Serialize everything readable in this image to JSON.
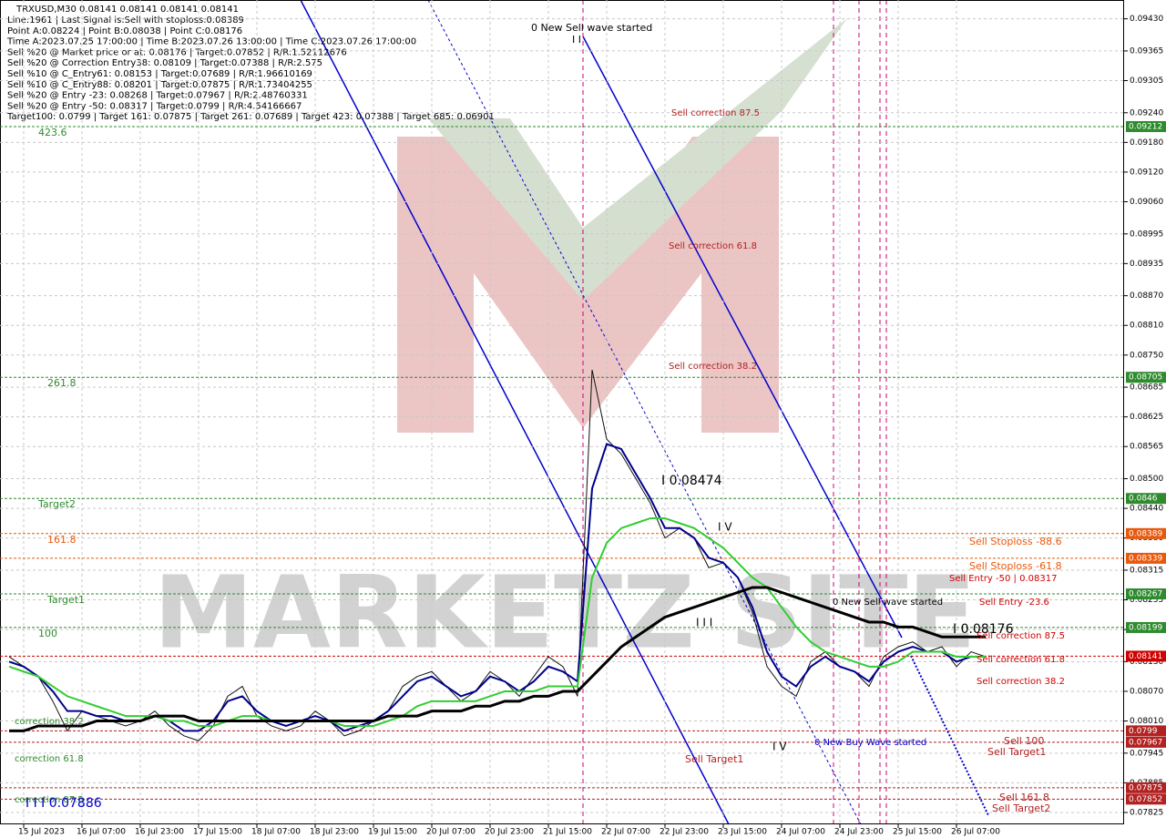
{
  "chart_data": {
    "type": "line",
    "symbol_line": "TRXUSD,M30  0.08141 0.08141 0.08141 0.08141",
    "info": [
      "Line:1961 | Last Signal is:Sell with stoploss:0.08389",
      "Point A:0.08224 | Point B:0.08038 | Point C:0.08176",
      "Time A:2023.07.25 17:00:00 | Time B:2023.07.26 13:00:00 | Time C:2023.07.26 17:00:00",
      "Sell %20 @ Market price or at: 0.08176 | Target:0.07852 | R/R:1.52112676",
      "Sell %20 @ Correction Entry38: 0.08109 | Target:0.07388 | R/R:2.575",
      "Sell %10 @ C_Entry61: 0.08153 | Target:0.07689 | R/R:1.96610169",
      "Sell %10 @ C_Entry88: 0.08201 | Target:0.07875 | R/R:1.73404255",
      "Sell %20 @ Entry -23: 0.08268 | Target:0.07967 | R/R:2.48760331",
      "Sell %20 @ Entry -50: 0.08317 | Target:0.0799 | R/R:4.54166667",
      "Target100: 0.0799 | Target 161: 0.07875 | Target 261: 0.07689 | Target 423: 0.07388 | Target 685: 0.06901"
    ],
    "watermark": "MARKETZ SITE",
    "categories": [
      null,
      "15 Jul 2023",
      null,
      null,
      null,
      "16 Jul 07:00",
      null,
      null,
      null,
      "16 Jul 23:00",
      null,
      null,
      null,
      "17 Jul 15:00",
      null,
      null,
      null,
      "18 Jul 07:00",
      null,
      null,
      null,
      "18 Jul 23:00",
      null,
      null,
      null,
      "19 Jul 15:00",
      null,
      null,
      null,
      "20 Jul 07:00",
      null,
      null,
      null,
      "20 Jul 23:00",
      null,
      null,
      null,
      "21 Jul 15:00",
      null,
      null,
      null,
      "22 Jul 07:00",
      null,
      null,
      null,
      "22 Jul 23:00",
      null,
      null,
      null,
      "23 Jul 15:00",
      null,
      null,
      null,
      "24 Jul 07:00",
      null,
      null,
      null,
      "24 Jul 23:00",
      null,
      null,
      null,
      "25 Jul 15:00",
      null,
      null,
      null,
      "26 Jul 07:00",
      null,
      null
    ],
    "series": [
      {
        "color": "#111111",
        "width": 1,
        "values": [
          0.0814,
          0.0812,
          0.081,
          0.0805,
          0.0799,
          0.0803,
          0.0802,
          0.0801,
          0.08,
          0.0801,
          0.0803,
          0.08,
          0.0798,
          0.0797,
          0.08,
          0.0806,
          0.0808,
          0.0802,
          0.08,
          0.0799,
          0.08,
          0.0803,
          0.0801,
          0.0798,
          0.0799,
          0.0801,
          0.0803,
          0.0808,
          0.081,
          0.0811,
          0.0808,
          0.0805,
          0.0807,
          0.0811,
          0.0809,
          0.0806,
          0.081,
          0.0814,
          0.0812,
          0.0806,
          0.0872,
          0.0858,
          0.0855,
          0.085,
          0.0845,
          0.0838,
          0.084,
          0.0838,
          0.0832,
          0.0833,
          0.083,
          0.0823,
          0.0812,
          0.0808,
          0.0806,
          0.0813,
          0.0815,
          0.0812,
          0.0811,
          0.0808,
          0.0814,
          0.0816,
          0.0817,
          0.0815,
          0.0816,
          0.0812,
          0.0815,
          0.0814
        ]
      },
      {
        "color": "#00008b",
        "width": 2,
        "values": [
          0.0813,
          0.0812,
          0.081,
          0.0807,
          0.0803,
          0.0803,
          0.0802,
          0.0802,
          0.0801,
          0.0801,
          0.0802,
          0.0801,
          0.0799,
          0.0799,
          0.0801,
          0.0805,
          0.0806,
          0.0803,
          0.0801,
          0.08,
          0.0801,
          0.0802,
          0.0801,
          0.0799,
          0.08,
          0.0801,
          0.0803,
          0.0806,
          0.0809,
          0.081,
          0.0808,
          0.0806,
          0.0807,
          0.081,
          0.0809,
          0.0807,
          0.0809,
          0.0812,
          0.0811,
          0.0809,
          0.0848,
          0.0857,
          0.0856,
          0.0851,
          0.0846,
          0.084,
          0.084,
          0.0838,
          0.0834,
          0.0833,
          0.083,
          0.0824,
          0.0815,
          0.081,
          0.0808,
          0.0812,
          0.0814,
          0.0812,
          0.0811,
          0.0809,
          0.0813,
          0.0815,
          0.0816,
          0.0815,
          0.0815,
          0.0813,
          0.0814,
          0.0814
        ]
      },
      {
        "color": "#32cd32",
        "width": 2,
        "values": [
          0.0812,
          0.0811,
          0.081,
          0.0808,
          0.0806,
          0.0805,
          0.0804,
          0.0803,
          0.0802,
          0.0802,
          0.0802,
          0.0801,
          0.0801,
          0.08,
          0.08,
          0.0801,
          0.0802,
          0.0802,
          0.0801,
          0.0801,
          0.0801,
          0.0801,
          0.0801,
          0.08,
          0.08,
          0.08,
          0.0801,
          0.0802,
          0.0804,
          0.0805,
          0.0805,
          0.0805,
          0.0805,
          0.0806,
          0.0807,
          0.0807,
          0.0807,
          0.0808,
          0.0808,
          0.0808,
          0.083,
          0.0837,
          0.084,
          0.0841,
          0.0842,
          0.0842,
          0.0841,
          0.084,
          0.0838,
          0.0836,
          0.0833,
          0.083,
          0.0828,
          0.0824,
          0.082,
          0.0817,
          0.0815,
          0.0814,
          0.0813,
          0.0812,
          0.0812,
          0.0813,
          0.0815,
          0.0815,
          0.0815,
          0.0814,
          0.0814,
          0.0814
        ]
      },
      {
        "color": "#000000",
        "width": 3,
        "values": [
          0.0799,
          0.0799,
          0.08,
          0.08,
          0.08,
          0.08,
          0.0801,
          0.0801,
          0.0801,
          0.0801,
          0.0802,
          0.0802,
          0.0802,
          0.0801,
          0.0801,
          0.0801,
          0.0801,
          0.0801,
          0.0801,
          0.0801,
          0.0801,
          0.0801,
          0.0801,
          0.0801,
          0.0801,
          0.0801,
          0.0802,
          0.0802,
          0.0802,
          0.0803,
          0.0803,
          0.0803,
          0.0804,
          0.0804,
          0.0805,
          0.0805,
          0.0806,
          0.0806,
          0.0807,
          0.0807,
          0.081,
          0.0813,
          0.0816,
          0.0818,
          0.082,
          0.0822,
          0.0823,
          0.0824,
          0.0825,
          0.0826,
          0.0827,
          0.0828,
          0.0828,
          0.0827,
          0.0826,
          0.0825,
          0.0824,
          0.0823,
          0.0822,
          0.0821,
          0.0821,
          0.082,
          0.082,
          0.0819,
          0.0818,
          0.0818,
          0.0818,
          0.0818
        ]
      }
    ],
    "levels": [
      {
        "value": 0.09212,
        "color": "#2e8b2e",
        "label": "423.6"
      },
      {
        "value": 0.08705,
        "color": "#2e8b2e",
        "label": "261.8"
      },
      {
        "value": 0.0846,
        "color": "#2e8b2e",
        "label": "Target2"
      },
      {
        "value": 0.08389,
        "color": "#e8590c",
        "label": "161.8"
      },
      {
        "value": 0.08339,
        "color": "#e8590c"
      },
      {
        "value": 0.08267,
        "color": "#2e8b2e",
        "label": "Target1"
      },
      {
        "value": 0.08199,
        "color": "#2e8b2e",
        "label": "100"
      },
      {
        "value": 0.08141,
        "color": "#d00000"
      },
      {
        "value": 0.0799,
        "color": "#b22222"
      },
      {
        "value": 0.07967,
        "color": "#b22222"
      },
      {
        "value": 0.07875,
        "color": "#b22222"
      },
      {
        "value": 0.07852,
        "color": "#b22222"
      }
    ],
    "annotations": [
      "0 New Sell wave started",
      "I I",
      "Sell correction 87.5",
      "Sell correction 61.8",
      "Sell correction 38.2",
      "I 0.08474",
      "I V",
      "I I I",
      "0 New Sell wave started",
      "I 0.08176",
      "0 New Buy Wave started",
      "I V",
      "Sell Target1",
      "Sell Stoploss -88.6",
      "Sell Stoploss -61.8",
      "Sell Entry -50 | 0.08317",
      "Sell Entry -23.6",
      "Sell correction 87.5",
      "Sell correction 61.8",
      "Sell correction 38.2",
      "Sell 100",
      "Sell Target1",
      "Sell 161.8",
      "Sell Target2",
      "correction 38.2",
      "correction 61.8",
      "correction 87.5",
      "I I I 0.07886"
    ],
    "ylim": [
      0.07801,
      0.09468
    ],
    "yticks": [
      {
        "value": 0.0943,
        "label": "0.09430"
      },
      {
        "value": 0.09365,
        "label": "0.09365"
      },
      {
        "value": 0.09305,
        "label": "0.09305"
      },
      {
        "value": 0.0924,
        "label": "0.09240"
      },
      {
        "value": 0.0918,
        "label": "0.09180"
      },
      {
        "value": 0.0912,
        "label": "0.09120"
      },
      {
        "value": 0.0906,
        "label": "0.09060"
      },
      {
        "value": 0.08995,
        "label": "0.08995"
      },
      {
        "value": 0.08935,
        "label": "0.08935"
      },
      {
        "value": 0.0887,
        "label": "0.08870"
      },
      {
        "value": 0.0881,
        "label": "0.08810"
      },
      {
        "value": 0.0875,
        "label": "0.08750"
      },
      {
        "value": 0.08685,
        "label": "0.08685"
      },
      {
        "value": 0.08625,
        "label": "0.08625"
      },
      {
        "value": 0.08565,
        "label": "0.08565"
      },
      {
        "value": 0.085,
        "label": "0.08500"
      },
      {
        "value": 0.0844,
        "label": "0.08440"
      },
      {
        "value": 0.0838,
        "label": "0.08380"
      },
      {
        "value": 0.08315,
        "label": "0.08315"
      },
      {
        "value": 0.08255,
        "label": "0.08255"
      },
      {
        "value": 0.08195,
        "label": "0.08195"
      },
      {
        "value": 0.0813,
        "label": "0.08130"
      },
      {
        "value": 0.0807,
        "label": "0.08070"
      },
      {
        "value": 0.0801,
        "label": "0.08010"
      },
      {
        "value": 0.07945,
        "label": "0.07945"
      },
      {
        "value": 0.07885,
        "label": "0.07885"
      },
      {
        "value": 0.07825,
        "label": "0.07825"
      }
    ],
    "grid": true
  }
}
